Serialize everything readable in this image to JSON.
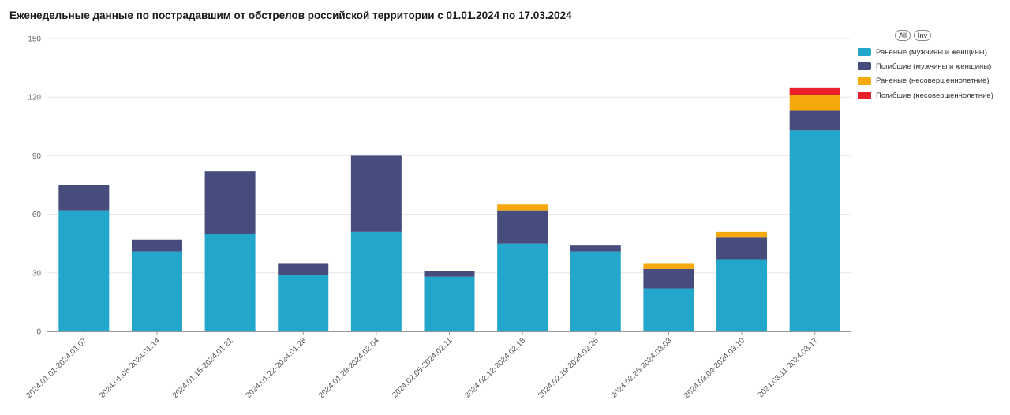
{
  "chart_data": {
    "type": "bar",
    "stacked": true,
    "title": "Еженедельные данные по пострадавшим от обстрелов российской территории с 01.01.2024 по 17.03.2024",
    "xlabel": "",
    "ylabel": "",
    "ylim": [
      0,
      150
    ],
    "yticks": [
      0,
      30,
      60,
      90,
      120,
      150
    ],
    "grid": true,
    "legend_position": "top-right",
    "categories": [
      "2024.01.01-2024.01.07",
      "2024.01.08-2024.01.14",
      "2024.01.15-2024.01.21",
      "2024.01.22-2024.01.28",
      "2024.01.29-2024.02.04",
      "2024.02.05-2024.02.11",
      "2024.02.12-2024.02.18",
      "2024.02.19-2024.02.25",
      "2024.02.26-2024.03.03",
      "2024.03.04-2024.03.10",
      "2024.03.11-2024.03.17"
    ],
    "series": [
      {
        "name": "Раненые (мужчины и женщины)",
        "color": "#22a6cb",
        "values": [
          62,
          41,
          50,
          29,
          51,
          28,
          45,
          41,
          22,
          37,
          103
        ]
      },
      {
        "name": "Погибшие (мужчины и женщины)",
        "color": "#464c7c",
        "values": [
          13,
          6,
          32,
          6,
          39,
          3,
          17,
          3,
          10,
          11,
          10
        ]
      },
      {
        "name": "Раненые (несовершеннолетние)",
        "color": "#f6a80c",
        "values": [
          0,
          0,
          0,
          0,
          0,
          0,
          3,
          0,
          3,
          3,
          8
        ]
      },
      {
        "name": "Погибшие (несовершеннолетние)",
        "color": "#e8202a",
        "values": [
          0,
          0,
          0,
          0,
          0,
          0,
          0,
          0,
          0,
          0,
          4
        ]
      }
    ]
  },
  "legend_controls": {
    "all_label": "All",
    "inv_label": "Inv"
  }
}
